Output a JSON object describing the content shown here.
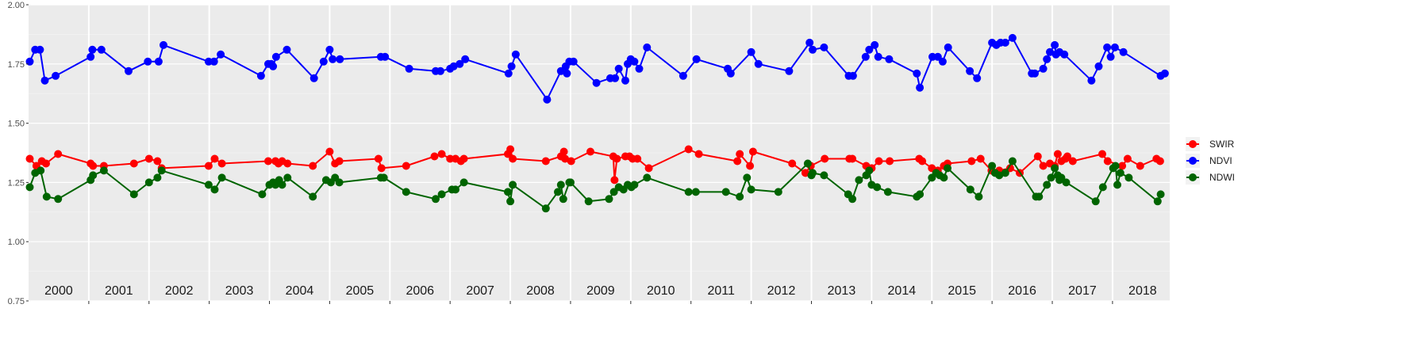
{
  "chart_data": {
    "type": "line",
    "xlabel": "",
    "ylabel": "",
    "xlim": [
      2000.0,
      2018.95
    ],
    "ylim": [
      0.75,
      2.0
    ],
    "y_ticks": [
      {
        "value": 0.75,
        "label": "0.75"
      },
      {
        "value": 1.0,
        "label": "1.00"
      },
      {
        "value": 1.25,
        "label": "1.25"
      },
      {
        "value": 1.5,
        "label": "1.50"
      },
      {
        "value": 1.75,
        "label": "1.75"
      },
      {
        "value": 2.0,
        "label": "2.00"
      }
    ],
    "year_labels": [
      "2000",
      "2001",
      "2002",
      "2003",
      "2004",
      "2005",
      "2006",
      "2007",
      "2008",
      "2009",
      "2010",
      "2011",
      "2012",
      "2013",
      "2014",
      "2015",
      "2016",
      "2017",
      "2018"
    ],
    "grid": true,
    "legend_position": "right",
    "series": [
      {
        "name": "SWIR",
        "color": "#ff0000",
        "x": [
          2000.02,
          2000.13,
          2000.22,
          2000.29,
          2000.49,
          2001.03,
          2001.07,
          2001.25,
          2001.75,
          2002.0,
          2002.14,
          2002.21,
          2002.99,
          2003.09,
          2003.21,
          2003.98,
          2004.1,
          2004.15,
          2004.21,
          2004.3,
          2004.72,
          2005.0,
          2005.09,
          2005.16,
          2005.81,
          2005.86,
          2006.27,
          2006.74,
          2006.86,
          2007.0,
          2007.09,
          2007.18,
          2007.23,
          2007.96,
          2008.0,
          2008.04,
          2008.59,
          2008.84,
          2008.89,
          2008.91,
          2009.01,
          2009.33,
          2009.71,
          2009.73,
          2009.77,
          2009.91,
          2009.98,
          2010.03,
          2010.11,
          2010.3,
          2010.96,
          2011.13,
          2011.77,
          2011.81,
          2011.98,
          2012.03,
          2012.68,
          2012.9,
          2012.99,
          2013.22,
          2013.63,
          2013.68,
          2013.91,
          2014.0,
          2014.12,
          2014.3,
          2014.79,
          2014.84,
          2015.0,
          2015.1,
          2015.2,
          2015.26,
          2015.66,
          2015.81,
          2015.99,
          2016.12,
          2016.3,
          2016.46,
          2016.76,
          2016.85,
          2016.96,
          2017.04,
          2017.09,
          2017.15,
          2017.22,
          2017.25,
          2017.34,
          2017.83,
          2017.92,
          2018.16,
          2018.25,
          2018.46,
          2018.73,
          2018.79
        ],
        "values": [
          1.35,
          1.32,
          1.34,
          1.33,
          1.37,
          1.33,
          1.32,
          1.32,
          1.33,
          1.35,
          1.34,
          1.31,
          1.32,
          1.35,
          1.33,
          1.34,
          1.34,
          1.33,
          1.34,
          1.33,
          1.32,
          1.38,
          1.33,
          1.34,
          1.35,
          1.31,
          1.32,
          1.36,
          1.37,
          1.35,
          1.35,
          1.34,
          1.35,
          1.37,
          1.39,
          1.35,
          1.34,
          1.36,
          1.38,
          1.35,
          1.34,
          1.38,
          1.36,
          1.26,
          1.35,
          1.36,
          1.36,
          1.35,
          1.35,
          1.31,
          1.39,
          1.37,
          1.34,
          1.37,
          1.32,
          1.38,
          1.33,
          1.29,
          1.32,
          1.35,
          1.35,
          1.35,
          1.32,
          1.31,
          1.34,
          1.34,
          1.35,
          1.34,
          1.31,
          1.3,
          1.32,
          1.33,
          1.34,
          1.35,
          1.3,
          1.3,
          1.31,
          1.29,
          1.36,
          1.32,
          1.33,
          1.32,
          1.37,
          1.34,
          1.35,
          1.36,
          1.34,
          1.37,
          1.34,
          1.32,
          1.35,
          1.32,
          1.35,
          1.34
        ]
      },
      {
        "name": "NDVI",
        "color": "#0000ff",
        "x": [
          2000.02,
          2000.11,
          2000.19,
          2000.27,
          2000.45,
          2001.03,
          2001.06,
          2001.21,
          2001.66,
          2001.98,
          2002.16,
          2002.24,
          2002.99,
          2003.08,
          2003.19,
          2003.86,
          2003.98,
          2004.03,
          2004.06,
          2004.11,
          2004.29,
          2004.74,
          2004.9,
          2005.0,
          2005.05,
          2005.17,
          2005.85,
          2005.92,
          2006.32,
          2006.76,
          2006.84,
          2007.0,
          2007.06,
          2007.16,
          2007.25,
          2007.97,
          2008.02,
          2008.09,
          2008.61,
          2008.84,
          2008.92,
          2008.94,
          2008.98,
          2009.05,
          2009.43,
          2009.66,
          2009.74,
          2009.8,
          2009.91,
          2009.95,
          2010.0,
          2010.06,
          2010.14,
          2010.27,
          2010.87,
          2011.09,
          2011.61,
          2011.66,
          2012.0,
          2012.12,
          2012.63,
          2012.97,
          2013.02,
          2013.21,
          2013.62,
          2013.69,
          2013.9,
          2013.96,
          2014.05,
          2014.11,
          2014.29,
          2014.75,
          2014.8,
          2015.01,
          2015.1,
          2015.18,
          2015.27,
          2015.63,
          2015.75,
          2016.0,
          2016.07,
          2016.14,
          2016.22,
          2016.34,
          2016.66,
          2016.71,
          2016.85,
          2016.91,
          2016.96,
          2017.04,
          2017.06,
          2017.12,
          2017.2,
          2017.65,
          2017.77,
          2017.91,
          2017.97,
          2018.04,
          2018.18,
          2018.8,
          2018.87
        ],
        "values": [
          1.76,
          1.81,
          1.81,
          1.68,
          1.7,
          1.78,
          1.81,
          1.81,
          1.72,
          1.76,
          1.76,
          1.83,
          1.76,
          1.76,
          1.79,
          1.7,
          1.75,
          1.75,
          1.74,
          1.78,
          1.81,
          1.69,
          1.76,
          1.81,
          1.77,
          1.77,
          1.78,
          1.78,
          1.73,
          1.72,
          1.72,
          1.73,
          1.74,
          1.75,
          1.77,
          1.71,
          1.74,
          1.79,
          1.6,
          1.72,
          1.74,
          1.71,
          1.76,
          1.76,
          1.67,
          1.69,
          1.69,
          1.73,
          1.68,
          1.75,
          1.77,
          1.76,
          1.73,
          1.82,
          1.7,
          1.77,
          1.73,
          1.71,
          1.8,
          1.75,
          1.72,
          1.84,
          1.81,
          1.82,
          1.7,
          1.7,
          1.78,
          1.81,
          1.83,
          1.78,
          1.77,
          1.71,
          1.65,
          1.78,
          1.78,
          1.76,
          1.82,
          1.72,
          1.69,
          1.84,
          1.83,
          1.84,
          1.84,
          1.86,
          1.71,
          1.71,
          1.73,
          1.77,
          1.8,
          1.83,
          1.79,
          1.8,
          1.79,
          1.68,
          1.74,
          1.82,
          1.78,
          1.82,
          1.8,
          1.7,
          1.71
        ]
      },
      {
        "name": "NDWI",
        "color": "#006400",
        "x": [
          2000.02,
          2000.11,
          2000.2,
          2000.3,
          2000.49,
          2001.03,
          2001.07,
          2001.25,
          2001.75,
          2002.0,
          2002.14,
          2002.21,
          2002.99,
          2003.09,
          2003.21,
          2003.88,
          2004.0,
          2004.06,
          2004.1,
          2004.16,
          2004.21,
          2004.3,
          2004.72,
          2004.94,
          2005.02,
          2005.09,
          2005.16,
          2005.85,
          2005.9,
          2006.27,
          2006.76,
          2006.86,
          2007.03,
          2007.09,
          2007.23,
          2007.96,
          2008.0,
          2008.04,
          2008.59,
          2008.79,
          2008.84,
          2008.88,
          2008.98,
          2009.0,
          2009.3,
          2009.64,
          2009.72,
          2009.8,
          2009.88,
          2009.95,
          2010.01,
          2010.06,
          2010.27,
          2010.96,
          2011.08,
          2011.58,
          2011.81,
          2011.93,
          2012.0,
          2012.45,
          2012.94,
          2013.0,
          2013.02,
          2013.21,
          2013.61,
          2013.68,
          2013.79,
          2013.91,
          2013.96,
          2014.0,
          2014.09,
          2014.27,
          2014.75,
          2014.8,
          2015.0,
          2015.07,
          2015.13,
          2015.2,
          2015.26,
          2015.64,
          2015.78,
          2016.0,
          2016.05,
          2016.12,
          2016.22,
          2016.34,
          2016.73,
          2016.78,
          2016.91,
          2016.98,
          2017.04,
          2017.09,
          2017.12,
          2017.15,
          2017.23,
          2017.72,
          2017.84,
          2018.01,
          2018.05,
          2018.08,
          2018.13,
          2018.27,
          2018.75,
          2018.8
        ],
        "values": [
          1.23,
          1.29,
          1.3,
          1.19,
          1.18,
          1.26,
          1.28,
          1.3,
          1.2,
          1.25,
          1.27,
          1.3,
          1.24,
          1.22,
          1.27,
          1.2,
          1.24,
          1.25,
          1.24,
          1.26,
          1.24,
          1.27,
          1.19,
          1.26,
          1.25,
          1.27,
          1.25,
          1.27,
          1.27,
          1.21,
          1.18,
          1.2,
          1.22,
          1.22,
          1.25,
          1.21,
          1.17,
          1.24,
          1.14,
          1.21,
          1.24,
          1.18,
          1.25,
          1.25,
          1.17,
          1.18,
          1.21,
          1.23,
          1.22,
          1.24,
          1.23,
          1.24,
          1.27,
          1.21,
          1.21,
          1.21,
          1.19,
          1.27,
          1.22,
          1.21,
          1.33,
          1.28,
          1.29,
          1.28,
          1.2,
          1.18,
          1.26,
          1.28,
          1.3,
          1.24,
          1.23,
          1.21,
          1.19,
          1.2,
          1.27,
          1.29,
          1.28,
          1.27,
          1.31,
          1.22,
          1.19,
          1.32,
          1.29,
          1.28,
          1.29,
          1.34,
          1.19,
          1.19,
          1.24,
          1.27,
          1.31,
          1.28,
          1.26,
          1.27,
          1.25,
          1.17,
          1.23,
          1.31,
          1.32,
          1.24,
          1.29,
          1.27,
          1.17,
          1.2
        ]
      }
    ]
  }
}
